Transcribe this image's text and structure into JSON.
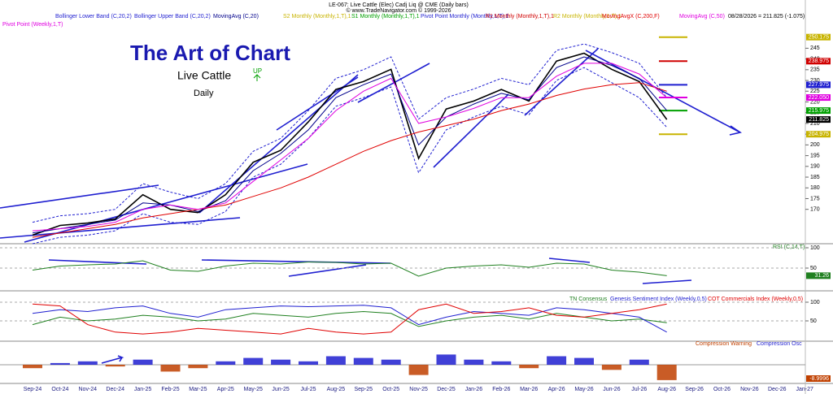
{
  "chart_data": [
    {
      "type": "line",
      "title": "LE-067: Live Cattle (Elec) Cadj Liq @ CME  (Daily bars)",
      "subtitle": "© www.TradeNavigator.com © 1999-2026",
      "annotations": [
        "The Art of Chart",
        "Daily",
        "UP",
        "08/28/2026 = 211.825 (-1.075)"
      ],
      "categories": [
        "Sep-24",
        "Oct-24",
        "Nov-24",
        "Dec-24",
        "Jan-25",
        "Feb-25",
        "Mar-25",
        "Apr-25",
        "May-25",
        "Jun-25",
        "Jul-25",
        "Aug-25",
        "Sep-25",
        "Oct-25",
        "Nov-25",
        "Dec-25",
        "Jan-26",
        "Feb-26",
        "Mar-26",
        "Apr-26",
        "May-26",
        "Jun-26",
        "Jul-26",
        "Aug-26",
        "Sep-26",
        "Oct-26",
        "Nov-26",
        "Dec-26",
        "Jan-27"
      ],
      "series": [
        {
          "name": "Live Cattle",
          "color": "#000000",
          "values": [
            158,
            162.5,
            163.6,
            165.5,
            176.8,
            170,
            168.5,
            176.8,
            191.9,
            197.5,
            210.7,
            225.8,
            229.5,
            235.2,
            193.7,
            216.7,
            220.4,
            225.8,
            220.4,
            239,
            242.7,
            235.2,
            229.5,
            211.825,
            null,
            null,
            null,
            null,
            null
          ]
        },
        {
          "name": "Bollinger Lower Band (C,20,2)",
          "color": "#1f1fd0",
          "values": [
            154,
            157,
            158,
            160,
            168,
            164,
            163,
            169,
            185,
            191,
            203,
            218,
            222,
            227,
            187,
            207,
            213,
            218,
            214,
            230,
            236,
            229,
            222,
            208.2,
            null,
            null,
            null,
            null,
            null
          ]
        },
        {
          "name": "Bollinger Upper Band (C,20,2)",
          "color": "#1f1fd0",
          "values": [
            164,
            167,
            168,
            170,
            182,
            178,
            175,
            182,
            197,
            203,
            216,
            231,
            235,
            241,
            212,
            222,
            226,
            231,
            228,
            244,
            247,
            243,
            238,
            222,
            null,
            null,
            null,
            null,
            null
          ]
        },
        {
          "name": "MovingAvg (C,20)",
          "color": "#00008b",
          "values": [
            159,
            161,
            163,
            165,
            173,
            172,
            169,
            174,
            188,
            196,
            207,
            222,
            228,
            233,
            200,
            213,
            219,
            224,
            221,
            236,
            241,
            237,
            231,
            216,
            null,
            null,
            null,
            null,
            null
          ]
        },
        {
          "name": "MovingAvgX (C,200,F)",
          "color": "#e00000",
          "values": [
            157,
            159,
            161,
            163,
            166,
            168,
            170,
            172,
            176,
            180,
            185,
            191,
            197,
            202,
            206,
            209,
            212,
            216,
            219,
            223,
            226,
            228,
            229,
            225,
            null,
            null,
            null,
            null,
            null
          ]
        },
        {
          "name": "MovingAvg (C,50)",
          "color": "#e000e0",
          "values": [
            160,
            161,
            162,
            164,
            170,
            172,
            170,
            173,
            183,
            193,
            203,
            216,
            225,
            231,
            210,
            213,
            217,
            222,
            222,
            232,
            238,
            238,
            233,
            222,
            null,
            null,
            null,
            null,
            null
          ]
        }
      ],
      "levels": [
        {
          "name": "S2 Monthly (Monthly,1,T),1",
          "color": "#c8b400",
          "value": 204.975
        },
        {
          "name": "S1 Monthly (Monthly,1,T),1",
          "color": "#00a000",
          "value": 215.975
        },
        {
          "name": "Pivot Point Monthly (Monthly,1,T),1",
          "color": "#1f1fd0",
          "value": 227.975
        },
        {
          "name": "R1 Monthly (Monthly,1,T),1",
          "color": "#d00000",
          "value": 238.975
        },
        {
          "name": "R2 Monthly (Monthly,1,T),1",
          "color": "#c8b400",
          "value": 250.175
        },
        {
          "name": "Pivot Point (Weekly,1,T)",
          "color": "#e000e0",
          "value": 222.05,
          "value_label": "222.050"
        }
      ],
      "ylim": [
        154,
        258
      ],
      "yticks": [
        170,
        175,
        180,
        185,
        190,
        195,
        200,
        205,
        210,
        215,
        220,
        225,
        230,
        235,
        240,
        245
      ],
      "grid": false
    },
    {
      "type": "line",
      "series": [
        {
          "name": "RSI (C,14,T)",
          "color": "#208020",
          "values": [
            45,
            55,
            58,
            60,
            68,
            45,
            42,
            55,
            62,
            60,
            65,
            64,
            60,
            62,
            30,
            50,
            55,
            58,
            52,
            62,
            60,
            45,
            40,
            31.26,
            null,
            null,
            null,
            null,
            null
          ]
        }
      ],
      "ylim": [
        0,
        100
      ],
      "yticks": [
        100,
        50
      ]
    },
    {
      "type": "line",
      "series": [
        {
          "name": "TN Consensus",
          "color": "#208020",
          "values": [
            40,
            60,
            50,
            55,
            65,
            60,
            50,
            55,
            70,
            65,
            60,
            70,
            75,
            70,
            35,
            50,
            60,
            65,
            55,
            70,
            60,
            50,
            55,
            45,
            null,
            null,
            null,
            null,
            null
          ]
        },
        {
          "name": "Genesis Sentiment Index (Weekly,0,5)",
          "color": "#1f1fd0",
          "values": [
            70,
            80,
            75,
            85,
            90,
            70,
            60,
            80,
            85,
            90,
            88,
            90,
            92,
            85,
            40,
            60,
            75,
            70,
            65,
            85,
            80,
            70,
            60,
            20,
            null,
            null,
            null,
            null,
            null
          ]
        },
        {
          "name": "COT Commercials Index (Weekly,0,5)",
          "color": "#e00000",
          "values": [
            95,
            90,
            40,
            20,
            15,
            20,
            30,
            25,
            20,
            15,
            30,
            20,
            15,
            20,
            80,
            95,
            70,
            75,
            85,
            65,
            60,
            70,
            80,
            95,
            null,
            null,
            null,
            null,
            null
          ]
        }
      ],
      "ylim": [
        0,
        100
      ],
      "yticks": [
        100,
        50
      ]
    },
    {
      "type": "bar",
      "series": [
        {
          "name": "Compression Warning",
          "color": "#c04000",
          "values": [
            -2,
            null,
            null,
            -1,
            null,
            -4,
            -2,
            null,
            null,
            null,
            null,
            null,
            null,
            null,
            -6,
            null,
            null,
            null,
            -2,
            null,
            null,
            -3,
            null,
            -8.9996,
            null,
            null,
            null,
            null,
            null
          ]
        },
        {
          "name": "Compression Osc",
          "color": "#1f1fd0",
          "values": [
            null,
            1,
            2,
            null,
            3,
            null,
            null,
            2,
            4,
            3,
            2,
            5,
            4,
            3,
            null,
            6,
            3,
            2,
            null,
            5,
            4,
            null,
            3,
            null,
            null,
            null,
            null,
            null,
            null
          ]
        }
      ],
      "ylim": [
        -10,
        10
      ]
    }
  ]
}
